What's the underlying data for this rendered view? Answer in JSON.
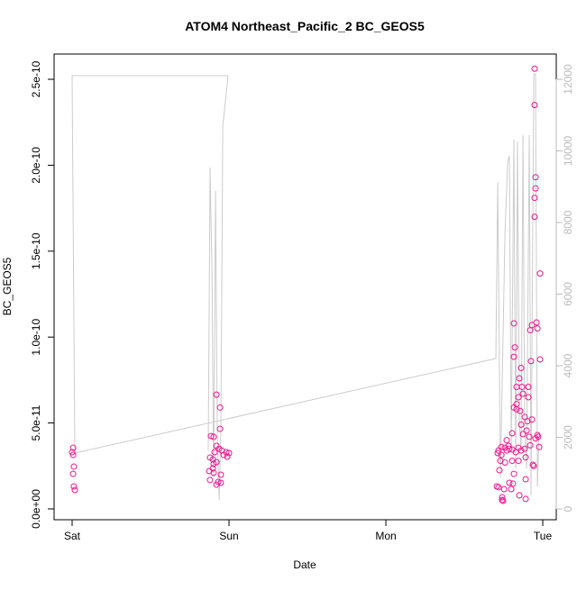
{
  "chart_data": {
    "type": "scatter",
    "title": "ATOM4 Northeast_Pacific_2 BC_GEOS5",
    "x_label": "Date",
    "y_label": "BC_GEOS5",
    "xlim": [
      -0.115,
      3.086
    ],
    "xticks": [
      {
        "value": 0,
        "label": "Sat"
      },
      {
        "value": 1,
        "label": "Sun"
      },
      {
        "value": 2,
        "label": "Mon"
      },
      {
        "value": 3,
        "label": "Tue"
      }
    ],
    "ylim": [
      -6.3e-12,
      2.647e-10
    ],
    "yticks": [
      {
        "value": 0,
        "label": "0.0e+00"
      },
      {
        "value": 5e-11,
        "label": "5.0e-11"
      },
      {
        "value": 1e-10,
        "label": "1.0e-10"
      },
      {
        "value": 1.5e-10,
        "label": "1.5e-10"
      },
      {
        "value": 2e-10,
        "label": "2.0e-10"
      },
      {
        "value": 2.5e-10,
        "label": "2.5e-10"
      }
    ],
    "y2lim": [
      -302,
      12705
    ],
    "y2ticks": [
      0,
      2000,
      4000,
      6000,
      8000,
      10000,
      12000
    ],
    "series": [
      {
        "type": "scatter",
        "color": "#f0168c",
        "x": [
          0.006,
          0,
          0.006,
          0.011,
          0.006,
          0.011,
          0.017,
          0.92,
          0.943,
          0.943,
          0.885,
          0.902,
          0.92,
          0.908,
          0.879,
          0.897,
          0.937,
          0.954,
          0.966,
          0.983,
          1.0,
          0.989,
          0.92,
          0.897,
          0.874,
          0.902,
          0.948,
          0.879,
          0.931,
          0.92,
          0.948,
          0.902,
          2.948,
          2.948,
          2.954,
          2.954,
          2.948,
          2.948,
          2.983,
          2.96,
          2.931,
          2.92,
          2.966,
          2.816,
          2.822,
          2.816,
          2.983,
          2.925,
          2.862,
          2.851,
          2.908,
          2.868,
          2.833,
          2.908,
          2.845,
          2.874,
          2.833,
          2.816,
          2.833,
          2.856,
          2.885,
          2.902,
          2.931,
          2.862,
          2.897,
          2.874,
          2.914,
          2.954,
          2.971,
          2.805,
          2.77,
          2.736,
          2.759,
          2.782,
          2.787,
          2.718,
          2.713,
          2.736,
          2.77,
          2.805,
          2.828,
          2.845,
          2.862,
          2.885,
          2.92,
          2.977,
          2.966,
          2.73,
          2.805,
          2.845,
          2.891,
          2.937,
          2.943,
          2.759,
          2.724,
          2.816,
          2.787,
          2.891,
          2.707,
          2.718,
          2.753,
          2.799,
          2.81,
          2.851,
          2.891,
          2.741,
          2.741,
          2.747
        ],
        "values": [
          3.56e-11,
          3.3e-11,
          3.14e-11,
          2.46e-11,
          2.04e-11,
          1.31e-11,
          1.1e-11,
          6.65e-11,
          5.9e-11,
          4.66e-11,
          4.24e-11,
          4.19e-11,
          3.67e-11,
          3.3e-11,
          2.99e-11,
          2.88e-11,
          3.5e-11,
          3.4e-11,
          3.14e-11,
          3.3e-11,
          3.25e-11,
          3.04e-11,
          2.72e-11,
          2.36e-11,
          2.2e-11,
          2.1e-11,
          1.99e-11,
          1.68e-11,
          1.57e-11,
          1.41e-11,
          1.52e-11,
          2.62e-11,
          2.562e-10,
          2.35e-10,
          1.93e-10,
          1.865e-10,
          1.81e-10,
          1.7e-10,
          1.37e-10,
          1.085e-10,
          1.07e-10,
          1.04e-10,
          1.05e-10,
          1.08e-10,
          9.4e-11,
          8.85e-11,
          8.7e-11,
          8.6e-11,
          8.2e-11,
          7.6e-11,
          7.1e-11,
          7.1e-11,
          7.1e-11,
          6.5e-11,
          6.5e-11,
          6.7e-11,
          6.1e-11,
          5.9e-11,
          5.8e-11,
          5.7e-11,
          5.35e-11,
          5.1e-11,
          5.2e-11,
          4.9e-11,
          4.56e-11,
          4.35e-11,
          4.2e-11,
          4.1e-11,
          4.2e-11,
          4.4e-11,
          4e-11,
          3.6e-11,
          3.56e-11,
          3.67e-11,
          3.5e-11,
          3.4e-11,
          3.25e-11,
          3.14e-11,
          3.4e-11,
          3.46e-11,
          3.3e-11,
          3.56e-11,
          3.4e-11,
          3.5e-11,
          3.7e-11,
          3.6e-11,
          4.3e-11,
          2.8e-11,
          2.8e-11,
          2.8e-11,
          3e-11,
          2.57e-11,
          2.5e-11,
          2.7e-11,
          2.25e-11,
          2.04e-11,
          1.52e-11,
          1.73e-11,
          1.31e-11,
          1.26e-11,
          1.15e-11,
          1.15e-11,
          1.47e-11,
          7.9e-12,
          5.8e-12,
          6.8e-12,
          5.2e-12,
          4.7e-12
        ]
      },
      {
        "type": "line",
        "axis": "y2",
        "color": "#cccccc",
        "x": [
          0.017,
          0,
          0.994,
          0.971,
          0.96,
          0.948,
          0.937,
          0.925,
          0.914,
          0.902,
          0.891,
          0.879,
          0.868,
          null,
          0.017,
          2.701,
          2.713,
          2.73,
          2.759,
          2.776,
          2.787,
          2.799,
          2.816,
          2.828,
          2.839,
          2.851,
          2.862,
          2.874,
          2.885,
          2.897,
          2.914,
          2.925,
          2.943,
          2.954,
          2.966,
          2.977
        ],
        "values": [
          1560,
          12102,
          12102,
          11146,
          10693,
          2139,
          252,
          2139,
          8881,
          881,
          6667,
          9536,
          1635,
          null,
          1560,
          4202,
          9133,
          881,
          7674,
          9687,
          9863,
          1635,
          10316,
          1132,
          10265,
          2390,
          1635,
          10441,
          2139,
          1132,
          10441,
          377,
          12152,
          12152,
          629,
          2139
        ]
      }
    ]
  }
}
